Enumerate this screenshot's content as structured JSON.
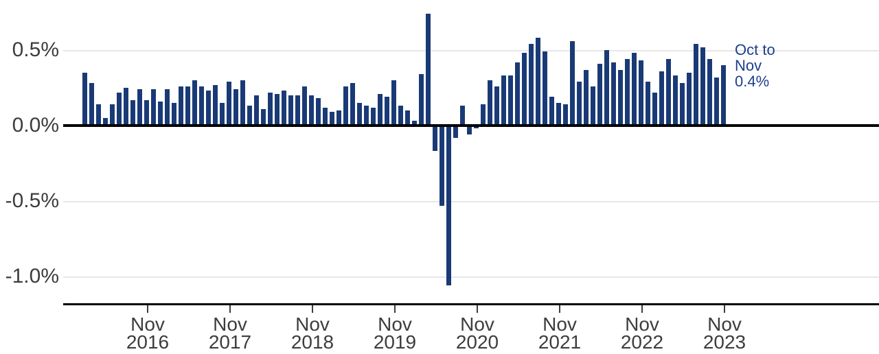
{
  "chart_data": {
    "type": "bar",
    "title": "",
    "xlabel": "",
    "ylabel": "",
    "unit": "%",
    "ylim": [
      -1.2,
      0.78
    ],
    "grid": true,
    "bar_color": "#1a3a76",
    "axis_text_color": "#3d3d3d",
    "gridline_color": "#e7e7e7",
    "x": [
      "Feb 2016",
      "Mar 2016",
      "Apr 2016",
      "May 2016",
      "Jun 2016",
      "Jul 2016",
      "Aug 2016",
      "Sep 2016",
      "Oct 2016",
      "Nov 2016",
      "Dec 2016",
      "Jan 2017",
      "Feb 2017",
      "Mar 2017",
      "Apr 2017",
      "May 2017",
      "Jun 2017",
      "Jul 2017",
      "Aug 2017",
      "Sep 2017",
      "Oct 2017",
      "Nov 2017",
      "Dec 2017",
      "Jan 2018",
      "Feb 2018",
      "Mar 2018",
      "Apr 2018",
      "May 2018",
      "Jun 2018",
      "Jul 2018",
      "Aug 2018",
      "Sep 2018",
      "Oct 2018",
      "Nov 2018",
      "Dec 2018",
      "Jan 2019",
      "Feb 2019",
      "Mar 2019",
      "Apr 2019",
      "May 2019",
      "Jun 2019",
      "Jul 2019",
      "Aug 2019",
      "Sep 2019",
      "Oct 2019",
      "Nov 2019",
      "Dec 2019",
      "Jan 2020",
      "Feb 2020",
      "Mar 2020",
      "Apr 2020",
      "May 2020",
      "Jun 2020",
      "Jul 2020",
      "Aug 2020",
      "Sep 2020",
      "Oct 2020",
      "Nov 2020",
      "Dec 2020",
      "Jan 2021",
      "Feb 2021",
      "Mar 2021",
      "Apr 2021",
      "May 2021",
      "Jun 2021",
      "Jul 2021",
      "Aug 2021",
      "Sep 2021",
      "Oct 2021",
      "Nov 2021",
      "Dec 2021",
      "Jan 2022",
      "Feb 2022",
      "Mar 2022",
      "Apr 2022",
      "May 2022",
      "Jun 2022",
      "Jul 2022",
      "Aug 2022",
      "Sep 2022",
      "Oct 2022",
      "Nov 2022",
      "Dec 2022",
      "Jan 2023",
      "Feb 2023",
      "Mar 2023",
      "Apr 2023",
      "May 2023",
      "Jun 2023",
      "Jul 2023",
      "Aug 2023",
      "Sep 2023",
      "Oct 2023",
      "Nov 2023"
    ],
    "values": [
      0.35,
      0.28,
      0.14,
      0.05,
      0.14,
      0.22,
      0.25,
      0.17,
      0.24,
      0.17,
      0.24,
      0.16,
      0.24,
      0.15,
      0.26,
      0.26,
      0.3,
      0.26,
      0.23,
      0.27,
      0.15,
      0.29,
      0.24,
      0.3,
      0.13,
      0.2,
      0.11,
      0.22,
      0.21,
      0.23,
      0.2,
      0.2,
      0.26,
      0.2,
      0.18,
      0.12,
      0.09,
      0.1,
      0.26,
      0.28,
      0.15,
      0.13,
      0.12,
      0.21,
      0.19,
      0.3,
      0.13,
      0.1,
      0.03,
      0.34,
      0.74,
      -0.17,
      -0.53,
      -1.06,
      -0.08,
      0.13,
      -0.06,
      -0.02,
      0.14,
      0.3,
      0.26,
      0.33,
      0.33,
      0.42,
      0.48,
      0.54,
      0.58,
      0.49,
      0.19,
      0.15,
      0.14,
      0.56,
      0.29,
      0.37,
      0.26,
      0.41,
      0.5,
      0.42,
      0.37,
      0.44,
      0.48,
      0.43,
      0.29,
      0.22,
      0.36,
      0.44,
      0.33,
      0.28,
      0.35,
      0.54,
      0.52,
      0.44,
      0.32,
      0.4
    ],
    "y_ticks": [
      {
        "label": "0.5%",
        "value": 0.5
      },
      {
        "label": "0.0%",
        "value": 0.0
      },
      {
        "label": "-0.5%",
        "value": -0.5
      },
      {
        "label": "-1.0%",
        "value": -1.0
      }
    ],
    "x_ticks": [
      {
        "month": "Nov",
        "year": "2016"
      },
      {
        "month": "Nov",
        "year": "2017"
      },
      {
        "month": "Nov",
        "year": "2018"
      },
      {
        "month": "Nov",
        "year": "2019"
      },
      {
        "month": "Nov",
        "year": "2020"
      },
      {
        "month": "Nov",
        "year": "2021"
      },
      {
        "month": "Nov",
        "year": "2022"
      },
      {
        "month": "Nov",
        "year": "2023"
      }
    ],
    "legend_position": "none",
    "annotation": {
      "lines": [
        "Oct to",
        "Nov",
        "0.4%"
      ],
      "color": "#1d3e8f"
    }
  }
}
